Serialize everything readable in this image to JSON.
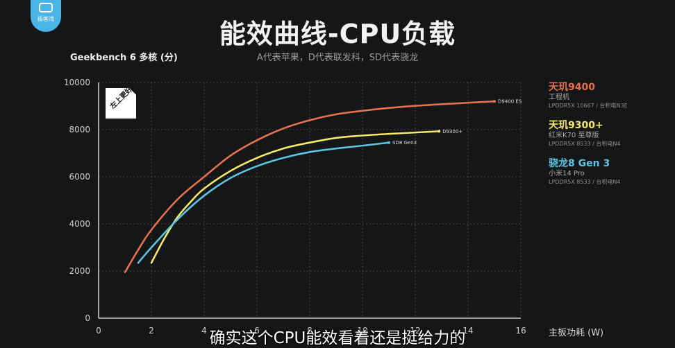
{
  "channel": {
    "logo_text": "极客湾",
    "logo_icon": "channel-logo-icon"
  },
  "caption": "确实这个CPU能效看着还是挺给力的",
  "badge": "左上更好",
  "chart_data": {
    "type": "line",
    "title": "能效曲线-CPU负载",
    "subtitle": "A代表苹果，D代表联发科，SD代表骁龙",
    "ylabel": "Geekbench 6 多核 (分)",
    "xlabel": "主板功耗 (W)",
    "xlim": [
      0,
      16
    ],
    "ylim": [
      0,
      10000
    ],
    "xticks": [
      "0",
      "2",
      "4",
      "6",
      "8",
      "10",
      "12",
      "14",
      "16"
    ],
    "yticks": [
      "0",
      "2000",
      "4000",
      "6000",
      "8000",
      "10000"
    ],
    "grid": true,
    "legend_position": "right",
    "series": [
      {
        "name": "天玑9400",
        "device": "工程机",
        "memory": "LPDDR5X 10667 / 台积电N3E",
        "end_label": "D9400 ES",
        "color": "#e8714d",
        "x": [
          1.0,
          1.5,
          2.0,
          3.0,
          4.0,
          5.0,
          6.0,
          7.0,
          8.0,
          9.0,
          10.0,
          11.0,
          12.0,
          13.0,
          14.0,
          15.0
        ],
        "y": [
          1950,
          2900,
          3750,
          5050,
          6000,
          6900,
          7550,
          8050,
          8400,
          8650,
          8800,
          8920,
          9010,
          9080,
          9140,
          9200
        ]
      },
      {
        "name": "天玑9300+",
        "device": "红米K70 至尊版",
        "memory": "LPDDR5X 8533 / 台积电N4",
        "end_label": "D9300+",
        "color": "#f6e96a",
        "x": [
          2.0,
          2.5,
          3.0,
          3.5,
          4.0,
          5.0,
          6.0,
          7.0,
          8.0,
          9.0,
          10.0,
          11.0,
          12.9
        ],
        "y": [
          2350,
          3400,
          4300,
          4950,
          5500,
          6250,
          6800,
          7200,
          7450,
          7650,
          7750,
          7820,
          7930
        ]
      },
      {
        "name": "骁龙8 Gen 3",
        "device": "小米14 Pro",
        "memory": "LPDDR5X 8533 / 台积电N4",
        "end_label": "SD8 Gen3",
        "color": "#5ac5e4",
        "x": [
          1.5,
          2.0,
          3.0,
          4.0,
          5.0,
          6.0,
          7.0,
          8.0,
          9.0,
          10.0,
          11.0
        ],
        "y": [
          2350,
          3000,
          4200,
          5200,
          5950,
          6450,
          6800,
          7050,
          7200,
          7320,
          7450
        ]
      }
    ]
  }
}
